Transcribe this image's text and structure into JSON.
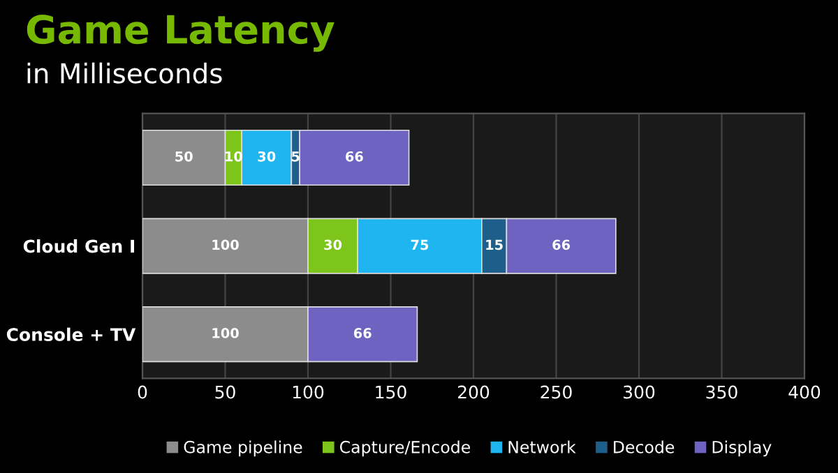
{
  "chart_data": {
    "type": "bar",
    "orientation": "horizontal",
    "stacked": true,
    "title": "Game Latency",
    "subtitle": "in Milliseconds",
    "categories": [
      null,
      "Cloud Gen I",
      "Console + TV"
    ],
    "series": [
      {
        "name": "Game pipeline",
        "color": "#8c8c8c",
        "values": [
          50,
          100,
          100
        ]
      },
      {
        "name": "Capture/Encode",
        "color": "#7dc51a",
        "values": [
          10,
          30,
          null
        ]
      },
      {
        "name": "Network",
        "color": "#1fb5f0",
        "values": [
          30,
          75,
          null
        ]
      },
      {
        "name": "Decode",
        "color": "#1d5f8a",
        "values": [
          5,
          15,
          null
        ]
      },
      {
        "name": "Display",
        "color": "#6e63c0",
        "values": [
          66,
          66,
          66
        ]
      }
    ],
    "xlim": [
      0,
      400
    ],
    "xticks": [
      0,
      50,
      100,
      150,
      200,
      250,
      300,
      350,
      400
    ],
    "grid": "x",
    "legend": "bottom",
    "data_labels": true
  }
}
